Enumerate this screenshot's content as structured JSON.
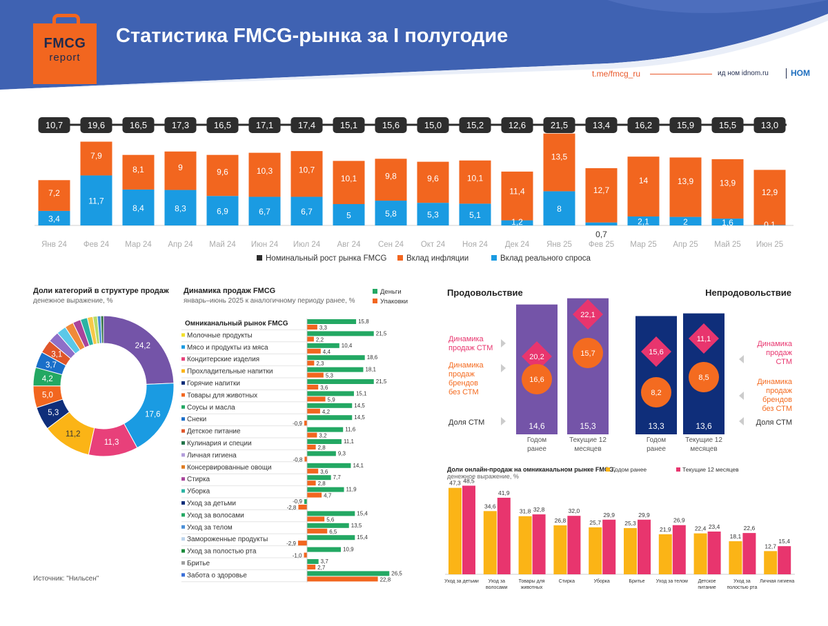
{
  "header": {
    "logo_line1": "FMCG",
    "logo_line2": "report",
    "title": "Статистика FMCG-рынка за I полугодие",
    "link": "t.me/fmcg_ru",
    "brand_text": "ид ном idnom.ru",
    "brand_logo": "НОМ"
  },
  "colors": {
    "header_bg": "#3f62b2",
    "orange": "#f2661f",
    "blue": "#1a9be2",
    "dark": "#2d2d2d",
    "purple": "#7454a8",
    "navy": "#0f2e7a",
    "pink": "#e8407a",
    "gold": "#fbb416",
    "green": "#23a863",
    "stm_orange": "#f46b20",
    "stm_pink": "#e8356e"
  },
  "chart_data": [
    {
      "type": "bar",
      "id": "monthly",
      "categories": [
        "Янв 24",
        "Фев 24",
        "Мар 24",
        "Апр 24",
        "Май 24",
        "Июн 24",
        "Июл 24",
        "Авг 24",
        "Сен 24",
        "Окт 24",
        "Ноя 24",
        "Дек 24",
        "Янв 25",
        "Фев 25",
        "Мар 25",
        "Апр 25",
        "Май 25",
        "Июн 25"
      ],
      "totals": [
        "10,7",
        "19,6",
        "16,5",
        "17,3",
        "16,5",
        "17,1",
        "17,4",
        "15,1",
        "15,6",
        "15,0",
        "15,2",
        "12,6",
        "21,5",
        "13,4",
        "16,2",
        "15,9",
        "15,5",
        "13,0"
      ],
      "series": [
        {
          "name": "Вклад реального спроса",
          "values": [
            3.4,
            11.7,
            8.4,
            8.3,
            6.9,
            6.7,
            6.7,
            5,
            5.8,
            5.3,
            5.1,
            1.2,
            8,
            0.7,
            2.1,
            2,
            1.6,
            0.1
          ],
          "labels": [
            "3,4",
            "11,7",
            "8,4",
            "8,3",
            "6,9",
            "6,7",
            "6,7",
            "5",
            "5,8",
            "5,3",
            "5,1",
            "1,2",
            "8",
            "0,7",
            "2,1",
            "2",
            "1,6",
            "0,1"
          ]
        },
        {
          "name": "Вклад инфляции",
          "values": [
            7.2,
            7.9,
            8.1,
            9,
            9.6,
            10.3,
            10.7,
            10.1,
            9.8,
            9.6,
            10.1,
            11.4,
            13.5,
            12.7,
            14,
            13.9,
            13.9,
            12.9
          ],
          "labels": [
            "7,2",
            "7,9",
            "8,1",
            "9",
            "9,6",
            "10,3",
            "10,7",
            "10,1",
            "9,8",
            "9,6",
            "10,1",
            "11,4",
            "13,5",
            "12,7",
            "14",
            "13,9",
            "13,9",
            "12,9"
          ]
        }
      ],
      "legend": [
        "Номинальный рост рынка FMCG",
        "Вклад инфляции",
        "Вклад реального спроса"
      ],
      "ylim": [
        0,
        22
      ]
    },
    {
      "type": "pie",
      "id": "category-shares",
      "title": "Доли категорий в структуре продаж",
      "subtitle": "денежное выражение, %",
      "values": [
        24.2,
        17.6,
        11.3,
        11.2,
        5.3,
        5.0,
        4.2,
        3.7,
        3.1,
        2.5,
        2.2,
        2.0,
        1.8,
        1.6,
        1.3,
        1.0,
        0.8,
        0.6
      ],
      "labels": [
        "24,2",
        "17,6",
        "11,3",
        "11,2",
        "5,3",
        "5,0",
        "4,2",
        "3,7",
        "3,1",
        "",
        "",
        "",
        "",
        "",
        "",
        "",
        "",
        ""
      ],
      "colors": [
        "#7454a8",
        "#1a9be2",
        "#e8407a",
        "#fbb416",
        "#0f2e7a",
        "#f2661f",
        "#23a863",
        "#1a6fc9",
        "#e0562a",
        "#8e6fc8",
        "#5bc8e8",
        "#f08a3a",
        "#a9449b",
        "#2bb3a3",
        "#f7c948",
        "#b5dc6a",
        "#4a8fd8",
        "#2a6e3c"
      ]
    },
    {
      "type": "bar",
      "id": "sales-dynamics",
      "title": "Динамика продаж FMCG",
      "subtitle": "январь–июнь 2025 к аналогичному периоду ранее, %",
      "legend": [
        "Деньги",
        "Упаковки"
      ],
      "categories": [
        "Омниканальный рынок FMCG",
        "Молочные продукты",
        "Мясо и продукты из мяса",
        "Кондитерские изделия",
        "Прохладительные напитки",
        "Горячие напитки",
        "Товары для животных",
        "Соусы и масла",
        "Снеки",
        "Детское питание",
        "Кулинария и специи",
        "Личная гигиена",
        "Консервированные овощи",
        "Стирка",
        "Уборка",
        "Уход за детьми",
        "Уход за волосами",
        "Уход за телом",
        "Замороженные продукты",
        "Уход за полостью рта",
        "Бритье",
        "Забота о здоровье"
      ],
      "marker_colors": [
        "",
        "#f2e02a",
        "#1a9be2",
        "#e8407a",
        "#fbb416",
        "#0f2e7a",
        "#f2661f",
        "#23a863",
        "#1a6fc9",
        "#e0562a",
        "#23754a",
        "#b39ddb",
        "#e07b20",
        "#a9449b",
        "#2bb3a3",
        "#0f2e7a",
        "#23a863",
        "#4a8fd8",
        "#bcd4ec",
        "#1a8a3a",
        "#9e9e9e",
        "#3a6fd8"
      ],
      "series": [
        {
          "name": "Деньги",
          "values": [
            15.8,
            21.5,
            10.4,
            18.6,
            18.1,
            21.5,
            15.1,
            14.5,
            14.5,
            11.6,
            11.1,
            9.3,
            14.1,
            7.7,
            11.9,
            -0.9,
            15.4,
            13.5,
            15.4,
            10.9,
            3.7,
            26.5
          ],
          "labels": [
            "15,8",
            "21,5",
            "10,4",
            "18,6",
            "18,1",
            "21,5",
            "15,1",
            "14,5",
            "14,5",
            "11,6",
            "11,1",
            "9,3",
            "14,1",
            "7,7",
            "11,9",
            "-0,9",
            "15,4",
            "13,5",
            "15,4",
            "10,9",
            "3,7",
            "26,5"
          ]
        },
        {
          "name": "Упаковки",
          "values": [
            3.3,
            2.2,
            4.4,
            2.3,
            5.3,
            3.6,
            5.9,
            4.2,
            -0.9,
            3.2,
            2.8,
            -0.8,
            3.6,
            2.8,
            4.7,
            -2.8,
            5.6,
            6.5,
            -2.9,
            -1.0,
            2.7,
            22.8
          ],
          "labels": [
            "3,3",
            "2,2",
            "4,4",
            "2,3",
            "5,3",
            "3,6",
            "5,9",
            "4,2",
            "-0,9",
            "3,2",
            "2,8",
            "-0,8",
            "3,6",
            "2,8",
            "4,7",
            "-2,8",
            "5,6",
            "6,5",
            "-2,9",
            "-1,0",
            "2,7",
            "22,8"
          ]
        }
      ]
    },
    {
      "type": "bar",
      "id": "private-label",
      "sections": [
        "Продовольствие",
        "Непродовольствие"
      ],
      "row_labels": [
        "Динамика продаж СТМ",
        "Динамика продаж брендов без СТМ",
        "Доля СТМ"
      ],
      "row_labels_left": [
        "Динамика\nпродаж СТМ",
        "Динамика\nпродаж\nбрендов\nбез СТМ",
        "Доля СТМ"
      ],
      "row_labels_right": [
        "Динамика\nпродаж\nСТМ",
        "Динамика\nпродаж\nбрендов\nбез СТМ",
        "Доля СТМ"
      ],
      "columns": [
        "Годом ранее",
        "Текущие 12 месяцев"
      ],
      "food": {
        "share": [
          "14,6",
          "15,3"
        ],
        "stm_growth": [
          "20,2",
          "22,1"
        ],
        "brand_growth": [
          "16,6",
          "15,7"
        ],
        "share_values": [
          14.6,
          15.3
        ]
      },
      "nonfood": {
        "share": [
          "13,3",
          "13,6"
        ],
        "stm_growth": [
          "15,6",
          "11,1"
        ],
        "brand_growth": [
          "8,2",
          "8,5"
        ],
        "share_values": [
          13.3,
          13.6
        ]
      }
    },
    {
      "type": "bar",
      "id": "online-share",
      "title": "Доли онлайн-продаж на омниканальном рынке FMCG,",
      "subtitle": "денежное выражение, %",
      "legend": [
        "Годом ранее",
        "Текущие 12 месяцев"
      ],
      "categories": [
        "Уход за детьми",
        "Уход за волосами",
        "Товары для животных",
        "Стирка",
        "Уборка",
        "Бритье",
        "Уход за телом",
        "Детское питание",
        "Уход за полостью рта",
        "Личная гигиена"
      ],
      "series": [
        {
          "name": "Годом ранее",
          "values": [
            47.3,
            34.6,
            31.8,
            26.8,
            25.7,
            25.3,
            21.9,
            22.4,
            18.1,
            12.7
          ],
          "labels": [
            "47,3",
            "34,6",
            "31,8",
            "26,8",
            "25,7",
            "25,3",
            "21,9",
            "22,4",
            "18,1",
            "12,7"
          ]
        },
        {
          "name": "Текущие 12 месяцев",
          "values": [
            48.5,
            41.9,
            32.8,
            32.0,
            29.9,
            29.9,
            26.9,
            23.4,
            22.6,
            15.4
          ],
          "labels": [
            "48,5",
            "41,9",
            "32,8",
            "32,0",
            "29,9",
            "29,9",
            "26,9",
            "23,4",
            "22,6",
            "15,4"
          ]
        }
      ],
      "ylim": [
        0,
        50
      ]
    }
  ],
  "footer": {
    "source": "Источник: \"Нильсен\""
  }
}
